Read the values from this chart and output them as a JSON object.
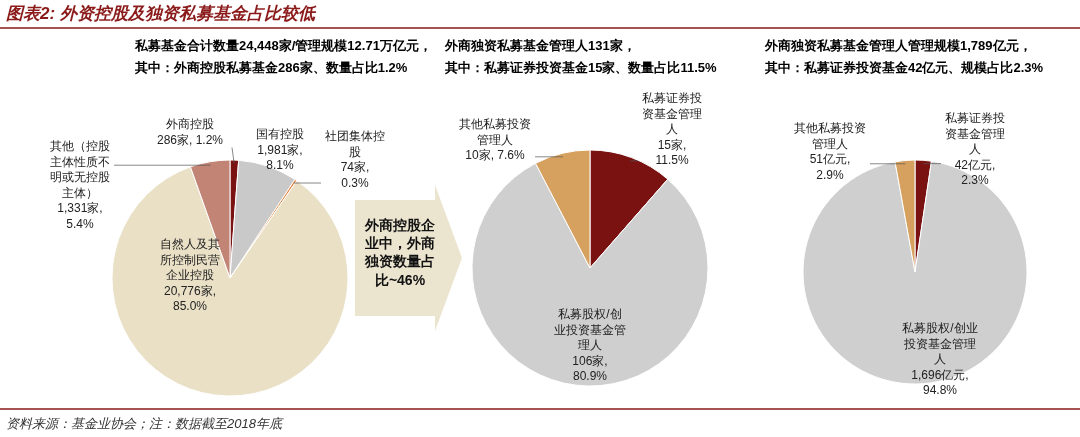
{
  "chart_data": [
    {
      "type": "pie",
      "title": "私募基金合计数量24,448家/管理规模12.71万亿元，",
      "subtitle": "其中：外商控股私募基金286家、数量占比1.2%",
      "categories": [
        "外商控股",
        "国有控股",
        "社团集体控股",
        "自然人及其所控制民营企业控股",
        "其他（控股主体性质不明或无控股主体）"
      ],
      "values": [
        286,
        1981,
        74,
        20776,
        1331
      ],
      "colors": [
        "#7a1212",
        "#c9c9c9",
        "#e0803a",
        "#e9e0c6",
        "#c28474"
      ],
      "value_labels": [
        "286家, 1.2%",
        "1,981家, 8.1%",
        "74家, 0.3%",
        "20,776家, 85.0%",
        "1,331家, 5.4%"
      ],
      "annotations": [
        "图表2: 外资控股及独资私募基金占比较低",
        "外商控股企业中，外商独资数量占比~46%",
        "资料来源：基金业协会；注：数据截至2018年底"
      ]
    },
    {
      "type": "pie",
      "title": "外商独资私募基金管理人131家，",
      "subtitle": "其中：私募证券投资基金15家、数量占比11.5%",
      "categories": [
        "私募证券投资基金管理人",
        "私募股权/创业投资基金管理人",
        "其他私募投资管理人"
      ],
      "values": [
        15,
        106,
        10
      ],
      "colors": [
        "#7a1212",
        "#cfcfcf",
        "#d6a05e"
      ],
      "value_labels": [
        "15家, 11.5%",
        "106家, 80.9%",
        "10家, 7.6%"
      ]
    },
    {
      "type": "pie",
      "title": "外商独资私募基金管理人管理规模1,789亿元，",
      "subtitle": "其中：私募证券投资基金42亿元、规模占比2.3%",
      "categories": [
        "私募证券投资基金管理人",
        "私募股权/创业投资基金管理人",
        "其他私募投资管理人"
      ],
      "values": [
        42,
        1696,
        51
      ],
      "colors": [
        "#7a1212",
        "#cfcfcf",
        "#d6a05e"
      ],
      "value_labels": [
        "42亿元, 2.3%",
        "1,696亿元, 94.8%",
        "51亿元, 2.9%"
      ]
    }
  ]
}
